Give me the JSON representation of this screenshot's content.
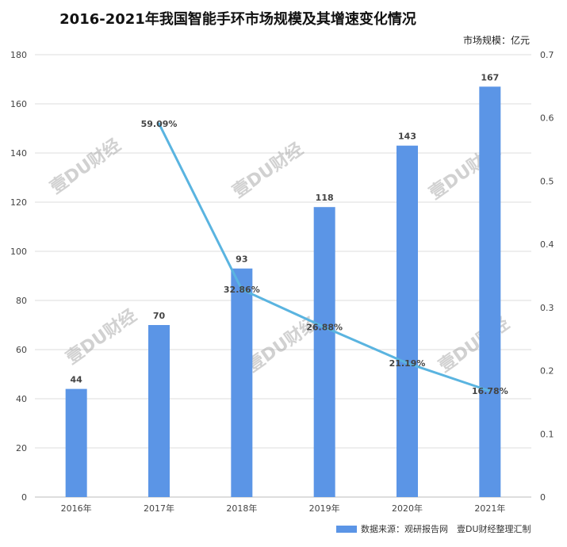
{
  "chart_data": {
    "type": "bar",
    "title": "2016-2021年我国智能手环市场规模及其增速变化情况",
    "unit_label": "市场规模：亿元",
    "categories": [
      "2016年",
      "2017年",
      "2018年",
      "2019年",
      "2020年",
      "2021年"
    ],
    "series": [
      {
        "name": "数据来源：观研报告网　壹DU财经整理汇制",
        "type": "bar",
        "axis": "left",
        "values": [
          44,
          70,
          93,
          118,
          143,
          167
        ],
        "labels": [
          "44",
          "70",
          "93",
          "118",
          "143",
          "167"
        ]
      },
      {
        "type": "line",
        "axis": "right",
        "values": [
          null,
          0.5909,
          0.3286,
          0.2688,
          0.2119,
          0.1678
        ],
        "labels": [
          "",
          "59.09%",
          "32.86%",
          "26.88%",
          "21.19%",
          "16.78%"
        ]
      }
    ],
    "ylim_left": [
      0,
      180
    ],
    "yticks_left": [
      "0",
      "20",
      "40",
      "60",
      "80",
      "100",
      "120",
      "140",
      "160",
      "180"
    ],
    "ylim_right": [
      0,
      0.7
    ],
    "yticks_right": [
      "0",
      "0.1",
      "0.2",
      "0.3",
      "0.4",
      "0.5",
      "0.6",
      "0.7"
    ],
    "grid": true,
    "legend_position": "bottom-right",
    "colors": {
      "bar": "#5b95e6",
      "line": "#5ab4e0",
      "grid": "#dddddd"
    },
    "watermark": "壹DU财经"
  }
}
